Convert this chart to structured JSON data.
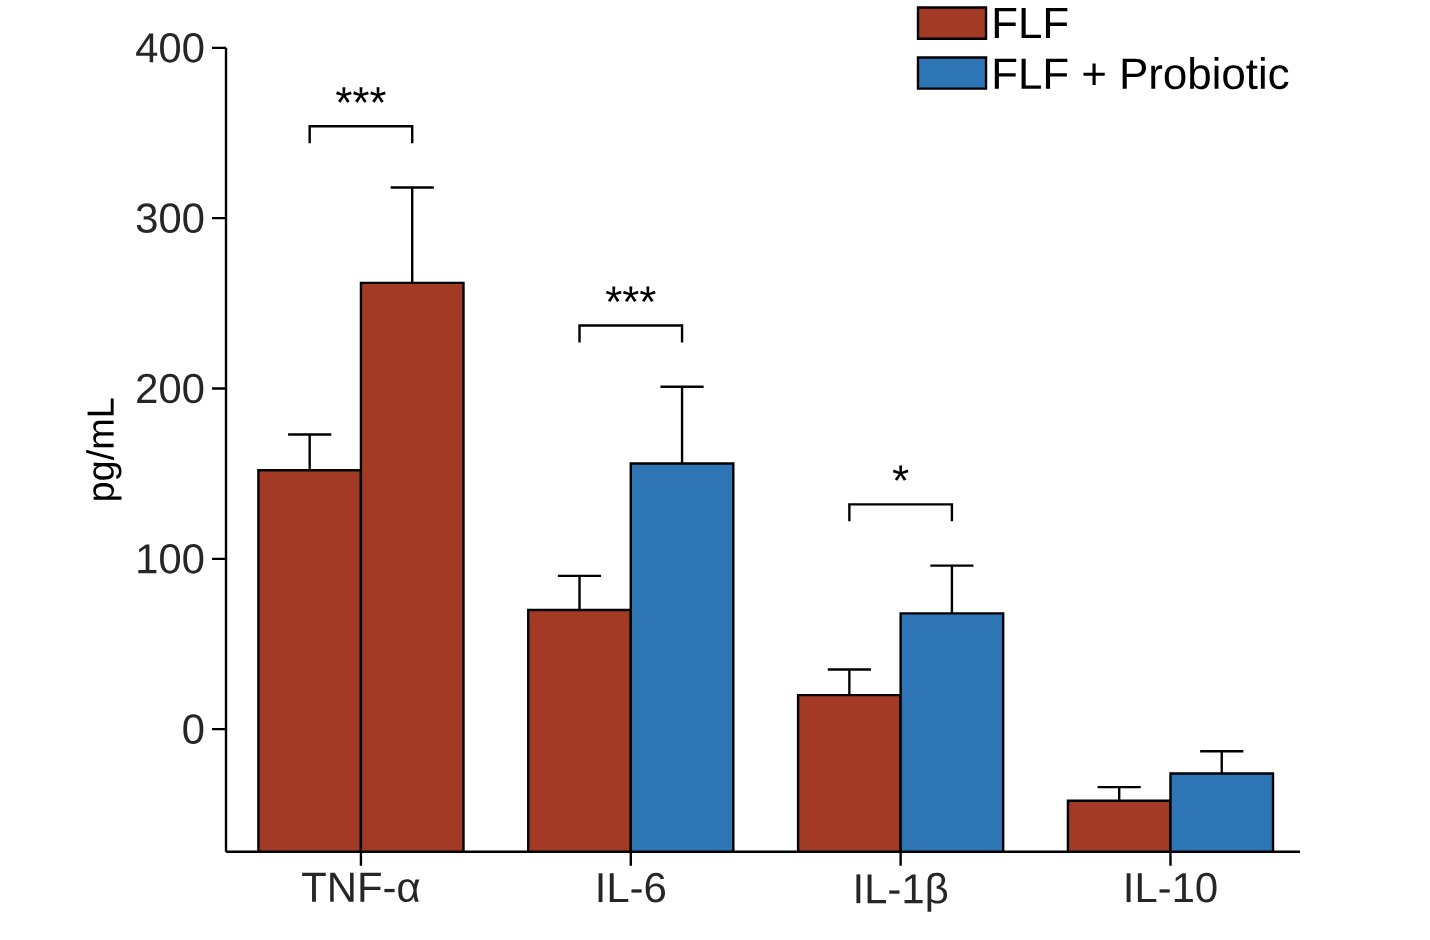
{
  "chart_data": {
    "type": "bar",
    "ylabel": "pg/mL",
    "categories": [
      "TNF-α",
      "IL-6",
      "IL-1β",
      "IL-10"
    ],
    "series": [
      {
        "name": "FLF",
        "color": "#a23a26",
        "base": [
          -72,
          -72,
          -72,
          -72
        ],
        "values": [
          224,
          142,
          92,
          30
        ],
        "errors": [
          [
            152,
            173
          ],
          [
            70,
            90
          ],
          [
            20,
            35
          ],
          [
            -42,
            -34
          ]
        ]
      },
      {
        "name": "FLF + Probiotic",
        "color": "#2e75b6",
        "colors": [
          "#a23a26",
          "#2e75b6",
          "#2e75b6",
          "#2e75b6"
        ],
        "base": [
          -72,
          -72,
          -72,
          -72
        ],
        "values": [
          334,
          228,
          140,
          46
        ],
        "errors": [
          [
            262,
            318
          ],
          [
            156,
            201
          ],
          [
            68,
            96
          ],
          [
            -26,
            -13
          ]
        ]
      }
    ],
    "annotations": [
      "***",
      "***",
      "*"
    ],
    "ylim": [
      -72,
      400
    ],
    "yticks": [
      0,
      100,
      200,
      300,
      400
    ],
    "legend": "top right",
    "grid": false
  }
}
